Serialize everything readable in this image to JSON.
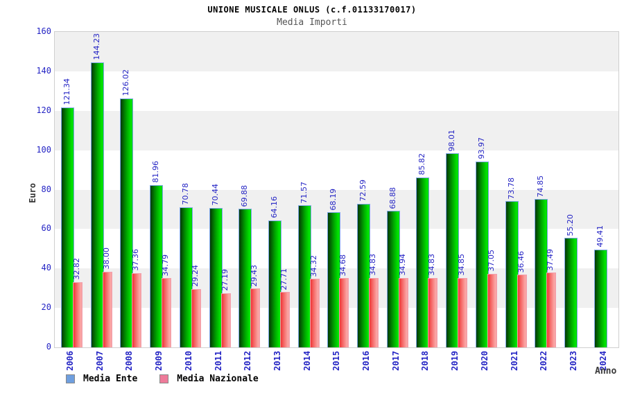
{
  "header": {
    "title": "UNIONE MUSICALE ONLUS (c.f.01133170017)",
    "subtitle": "Media Importi"
  },
  "axes": {
    "y_label": "Euro",
    "x_label": "Anno"
  },
  "legend": {
    "items": [
      {
        "label": "Media Ente",
        "swatch": "#6f9fdf"
      },
      {
        "label": "Media Nazionale",
        "swatch": "#ee7b9a"
      }
    ]
  },
  "chart_data": {
    "type": "bar",
    "title": "Media Importi",
    "categories": [
      "2006",
      "2007",
      "2008",
      "2009",
      "2010",
      "2011",
      "2012",
      "2013",
      "2014",
      "2015",
      "2016",
      "2017",
      "2018",
      "2019",
      "2020",
      "2021",
      "2022",
      "2023",
      "2024"
    ],
    "series": [
      {
        "name": "Media Ente",
        "color": "#00cc00",
        "values": [
          121.34,
          144.23,
          126.02,
          81.96,
          70.78,
          70.44,
          69.88,
          64.16,
          71.57,
          68.19,
          72.59,
          68.88,
          85.82,
          98.01,
          93.97,
          73.78,
          74.85,
          55.2,
          49.41
        ]
      },
      {
        "name": "Media Nazionale",
        "color": "#ff5555",
        "values": [
          32.82,
          38.0,
          37.36,
          34.79,
          29.24,
          27.19,
          29.43,
          27.71,
          34.32,
          34.68,
          34.83,
          34.94,
          34.83,
          34.85,
          37.05,
          36.46,
          37.49,
          null,
          null
        ]
      }
    ],
    "xlabel": "Anno",
    "ylabel": "Euro",
    "ylim": [
      0,
      160
    ],
    "yticks": [
      0,
      20,
      40,
      60,
      80,
      100,
      120,
      140,
      160
    ],
    "value_label_decimals": 2,
    "grid_bands": true,
    "band_colors": [
      "#f0f0f0",
      "#ffffff"
    ],
    "legend_position": "bottom-left",
    "axis_text_color": "#2424c4",
    "value_text_color": "#2424c4"
  }
}
